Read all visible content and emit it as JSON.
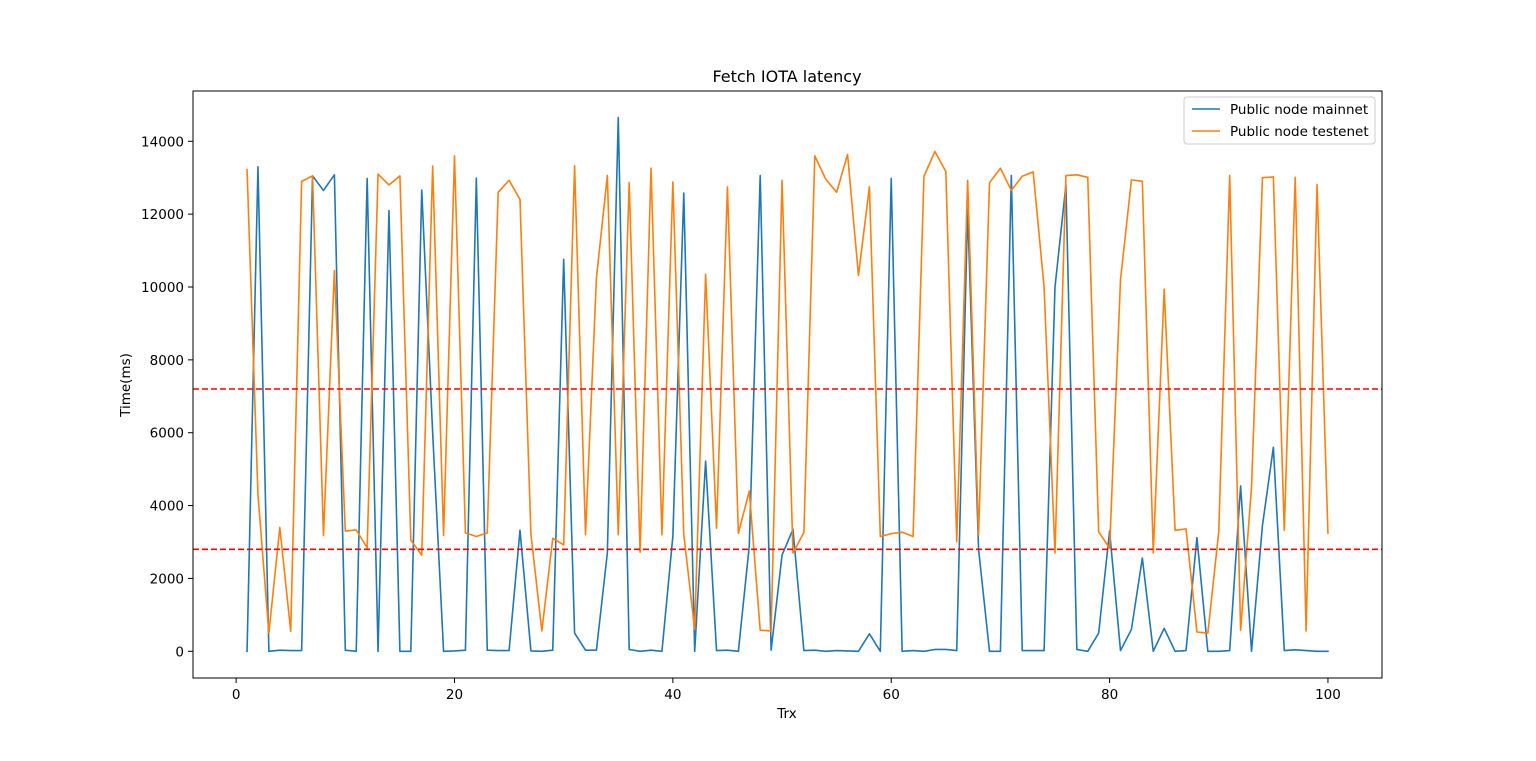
{
  "chart_data": {
    "type": "line",
    "title": "Fetch IOTA latency",
    "xlabel": "Trx",
    "ylabel": "Time(ms)",
    "xlim": [
      -3.95,
      104.95
    ],
    "ylim": [
      -733,
      15380
    ],
    "xticks": [
      0,
      20,
      40,
      60,
      80,
      100
    ],
    "yticks": [
      0,
      2000,
      4000,
      6000,
      8000,
      10000,
      12000,
      14000
    ],
    "grid": false,
    "legend_position": "upper right",
    "x": [
      1,
      2,
      3,
      4,
      5,
      6,
      7,
      8,
      9,
      10,
      11,
      12,
      13,
      14,
      15,
      16,
      17,
      18,
      19,
      20,
      21,
      22,
      23,
      24,
      25,
      26,
      27,
      28,
      29,
      30,
      31,
      32,
      33,
      34,
      35,
      36,
      37,
      38,
      39,
      40,
      41,
      42,
      43,
      44,
      45,
      46,
      47,
      48,
      49,
      50,
      51,
      52,
      53,
      54,
      55,
      56,
      57,
      58,
      59,
      60,
      61,
      62,
      63,
      64,
      65,
      66,
      67,
      68,
      69,
      70,
      71,
      72,
      73,
      74,
      75,
      76,
      77,
      78,
      79,
      80,
      81,
      82,
      83,
      84,
      85,
      86,
      87,
      88,
      89,
      90,
      91,
      92,
      93,
      94,
      95,
      96,
      97,
      98,
      99,
      100
    ],
    "series": [
      {
        "name": "Public node mainnet",
        "color": "#1f77b4",
        "values": [
          0,
          13300,
          0,
          30,
          20,
          20,
          13050,
          12650,
          13080,
          30,
          0,
          12980,
          0,
          12100,
          0,
          0,
          12660,
          6000,
          0,
          10,
          30,
          12990,
          30,
          20,
          20,
          3320,
          10,
          0,
          30,
          10760,
          500,
          30,
          30,
          2700,
          14650,
          50,
          0,
          30,
          0,
          3160,
          12580,
          0,
          5220,
          20,
          30,
          0,
          2900,
          13060,
          30,
          2640,
          3350,
          20,
          30,
          0,
          20,
          10,
          0,
          480,
          0,
          12980,
          0,
          20,
          0,
          50,
          50,
          20,
          12130,
          2800,
          0,
          0,
          13060,
          20,
          20,
          20,
          10000,
          12800,
          50,
          0,
          500,
          3300,
          20,
          600,
          2560,
          0,
          630,
          0,
          20,
          3120,
          0,
          0,
          20,
          4540,
          0,
          3450,
          5600,
          20,
          40,
          20,
          0,
          0
        ]
      },
      {
        "name": "Public node testenet",
        "color": "#ff7f0e",
        "values": [
          13220,
          4300,
          500,
          3400,
          550,
          12900,
          13050,
          3180,
          10450,
          3300,
          3330,
          2840,
          13100,
          12800,
          13050,
          3050,
          2640,
          13320,
          3180,
          13600,
          3250,
          3150,
          3250,
          12600,
          12930,
          12400,
          3220,
          560,
          3100,
          2920,
          13330,
          3200,
          10250,
          13060,
          3200,
          12870,
          2720,
          13260,
          3200,
          12880,
          3200,
          600,
          10350,
          3380,
          12750,
          3240,
          4400,
          580,
          560,
          12930,
          2700,
          3260,
          13600,
          12960,
          12600,
          13640,
          10320,
          12750,
          3150,
          3230,
          3270,
          3150,
          13040,
          13720,
          13170,
          3010,
          12930,
          3200,
          12860,
          13260,
          12650,
          13040,
          13160,
          10000,
          2700,
          13060,
          13080,
          13010,
          3280,
          2830,
          10200,
          12940,
          12900,
          2700,
          9940,
          3320,
          3360,
          530,
          500,
          3290,
          13060,
          580,
          4500,
          13000,
          13020,
          3320,
          13010,
          560,
          12810,
          3240
        ]
      }
    ],
    "reference_lines": [
      {
        "orientation": "horizontal",
        "y": 7200,
        "color": "#ff0000",
        "style": "dashed"
      },
      {
        "orientation": "horizontal",
        "y": 2800,
        "color": "#ff0000",
        "style": "dashed"
      }
    ]
  }
}
